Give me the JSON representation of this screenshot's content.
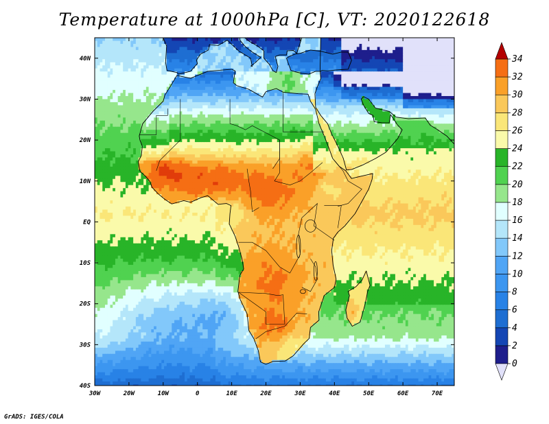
{
  "title": "Temperature at 1000hPa [C], VT: 2020122618",
  "credit": "GrADS: IGES/COLA",
  "map": {
    "region": "Africa",
    "lon_range": [
      -30,
      75
    ],
    "lat_range": [
      -40,
      45
    ],
    "lon_ticks": [
      {
        "value": -30,
        "label": "30W"
      },
      {
        "value": -20,
        "label": "20W"
      },
      {
        "value": -10,
        "label": "10W"
      },
      {
        "value": 0,
        "label": "0"
      },
      {
        "value": 10,
        "label": "10E"
      },
      {
        "value": 20,
        "label": "20E"
      },
      {
        "value": 30,
        "label": "30E"
      },
      {
        "value": 40,
        "label": "40E"
      },
      {
        "value": 50,
        "label": "50E"
      },
      {
        "value": 60,
        "label": "60E"
      },
      {
        "value": 70,
        "label": "70E"
      }
    ],
    "lat_ticks": [
      {
        "value": 40,
        "label": "40N"
      },
      {
        "value": 30,
        "label": "30N"
      },
      {
        "value": 20,
        "label": "20N"
      },
      {
        "value": 10,
        "label": "10N"
      },
      {
        "value": 0,
        "label": "EQ"
      },
      {
        "value": -10,
        "label": "10S"
      },
      {
        "value": -20,
        "label": "20S"
      },
      {
        "value": -30,
        "label": "30S"
      },
      {
        "value": -40,
        "label": "40S"
      }
    ]
  },
  "colorbar": {
    "levels": [
      "0",
      "2",
      "4",
      "6",
      "8",
      "10",
      "12",
      "14",
      "16",
      "18",
      "20",
      "22",
      "24",
      "26",
      "28",
      "30",
      "32",
      "34"
    ],
    "colors": [
      "#1e1e8c",
      "#1446b4",
      "#1e6ed2",
      "#2882e6",
      "#3c96f0",
      "#50a5f5",
      "#82c8fa",
      "#b4e6fa",
      "#e1ffff",
      "#96e68c",
      "#50d250",
      "#28b428",
      "#fafaaa",
      "#fae678",
      "#fac85a",
      "#faa028",
      "#f56e14",
      "#e13c0a",
      "#b40000"
    ],
    "under_color": "#e1e1fa",
    "over_color": "#b40000"
  }
}
